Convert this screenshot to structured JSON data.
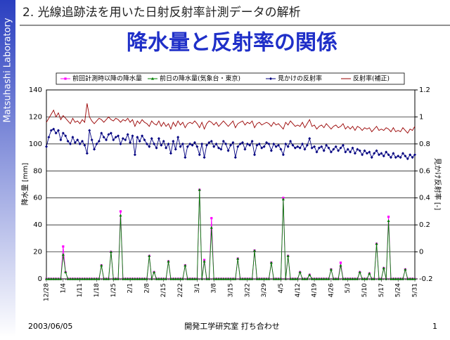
{
  "slide": {
    "sidebar": "Matsuhashi Laboratory",
    "heading": "2. 光線追跡法を用いた日射反射率計測データの解析",
    "title": "降水量と反射率の関係",
    "footer_date": "2003/06/05",
    "footer_center": "開発工学研究室 打ち合わせ",
    "page": "1"
  },
  "chart_data": {
    "type": "line",
    "ylabel": "降水量 [mm]",
    "y2label": "見かけ反射率 [-]",
    "ylim": [
      0,
      140
    ],
    "yticks": [
      0,
      20,
      40,
      60,
      80,
      100,
      120,
      140
    ],
    "y2lim": [
      -0.2,
      1.2
    ],
    "y2ticks": [
      -0.2,
      0,
      0.2,
      0.4,
      0.6,
      0.8,
      1,
      1.2
    ],
    "grid": true,
    "legend": "top",
    "categories": [
      "12/28",
      null,
      null,
      null,
      null,
      null,
      null,
      "1/4",
      null,
      null,
      null,
      null,
      null,
      null,
      "1/11",
      null,
      null,
      null,
      null,
      null,
      null,
      "1/18",
      null,
      null,
      null,
      null,
      null,
      null,
      "1/25",
      null,
      null,
      null,
      null,
      null,
      null,
      "2/1",
      null,
      null,
      null,
      null,
      null,
      null,
      "2/8",
      null,
      null,
      null,
      null,
      null,
      null,
      "2/15",
      null,
      null,
      null,
      null,
      null,
      null,
      "2/22",
      null,
      null,
      null,
      null,
      null,
      null,
      "3/1",
      null,
      null,
      null,
      null,
      null,
      null,
      "3/8",
      null,
      null,
      null,
      null,
      null,
      null,
      "3/15",
      null,
      null,
      null,
      null,
      null,
      null,
      "3/22",
      null,
      null,
      null,
      null,
      null,
      null,
      "3/29",
      null,
      null,
      null,
      null,
      null,
      null,
      "4/5",
      null,
      null,
      null,
      null,
      null,
      null,
      "4/12",
      null,
      null,
      null,
      null,
      null,
      null,
      "4/19",
      null,
      null,
      null,
      null,
      null,
      null,
      "4/26",
      null,
      null,
      null,
      null,
      null,
      null,
      "5/3",
      null,
      null,
      null,
      null,
      null,
      null,
      "5/10",
      null,
      null,
      null,
      null,
      null,
      null,
      "5/17",
      null,
      null,
      null,
      null,
      null,
      null,
      "5/24",
      null,
      null,
      null,
      null,
      null,
      null,
      "5/31"
    ],
    "series": [
      {
        "name": "前回計測時以降の降水量",
        "color": "#ff00ff",
        "marker": "square",
        "values": [
          0,
          0,
          0,
          0,
          0,
          0,
          0,
          24,
          5,
          0,
          0,
          0,
          0,
          0,
          0,
          0,
          0,
          0,
          0,
          0,
          0,
          0,
          0,
          10,
          0,
          0,
          0,
          20,
          0,
          0,
          0,
          50,
          0,
          0,
          0,
          0,
          0,
          0,
          0,
          0,
          0,
          0,
          0,
          17,
          0,
          5,
          0,
          0,
          0,
          0,
          0,
          13,
          0,
          0,
          0,
          0,
          0,
          0,
          10,
          0,
          0,
          0,
          0,
          0,
          66,
          0,
          14,
          0,
          0,
          45,
          0,
          0,
          0,
          0,
          0,
          0,
          0,
          0,
          0,
          0,
          15,
          0,
          0,
          0,
          0,
          0,
          0,
          21,
          0,
          0,
          0,
          0,
          0,
          0,
          12,
          0,
          0,
          0,
          0,
          60,
          0,
          17,
          0,
          0,
          0,
          0,
          5,
          0,
          0,
          0,
          3,
          0,
          0,
          0,
          0,
          0,
          0,
          0,
          0,
          7,
          0,
          0,
          0,
          12,
          0,
          0,
          0,
          0,
          0,
          0,
          0,
          5,
          0,
          0,
          0,
          4,
          0,
          0,
          26,
          0,
          0,
          8,
          0,
          46,
          0,
          0,
          0,
          0,
          0,
          0,
          7,
          0,
          0,
          0,
          0
        ]
      },
      {
        "name": "前日の降水量(気象台・東京)",
        "color": "#008000",
        "marker": "triangle",
        "values": [
          0,
          0,
          0,
          0,
          0,
          0,
          0,
          18,
          5,
          0,
          0,
          0,
          0,
          0,
          0,
          0,
          0,
          0,
          0,
          0,
          0,
          0,
          0,
          10,
          0,
          0,
          0,
          20,
          0,
          0,
          0,
          47,
          0,
          0,
          0,
          0,
          0,
          0,
          0,
          0,
          0,
          0,
          0,
          17,
          0,
          5,
          0,
          0,
          0,
          0,
          0,
          13,
          0,
          0,
          0,
          0,
          0,
          0,
          10,
          0,
          0,
          0,
          0,
          0,
          66,
          0,
          13,
          0,
          0,
          38,
          0,
          0,
          0,
          0,
          0,
          0,
          0,
          0,
          0,
          0,
          15,
          0,
          0,
          0,
          0,
          0,
          0,
          21,
          0,
          0,
          0,
          0,
          0,
          0,
          12,
          0,
          0,
          0,
          0,
          59,
          0,
          17,
          0,
          0,
          0,
          0,
          5,
          0,
          0,
          0,
          3,
          0,
          0,
          0,
          0,
          0,
          0,
          0,
          0,
          7,
          0,
          0,
          0,
          10,
          0,
          0,
          0,
          0,
          0,
          0,
          0,
          5,
          0,
          0,
          0,
          4,
          0,
          0,
          26,
          0,
          0,
          8,
          0,
          43,
          0,
          0,
          0,
          0,
          0,
          0,
          7,
          0,
          0,
          0,
          0
        ]
      },
      {
        "name": "見かけの反射率",
        "color": "#000080",
        "marker": "diamond",
        "axis": "y2",
        "values": [
          0.78,
          0.85,
          0.9,
          0.91,
          0.88,
          0.9,
          0.83,
          0.88,
          0.86,
          0.82,
          0.8,
          0.85,
          0.81,
          0.83,
          0.8,
          0.82,
          0.79,
          0.73,
          0.9,
          0.83,
          0.76,
          0.8,
          0.82,
          0.88,
          0.85,
          0.83,
          0.87,
          0.88,
          0.83,
          0.85,
          0.86,
          0.8,
          0.84,
          0.83,
          0.87,
          0.81,
          0.86,
          0.72,
          0.85,
          0.82,
          0.86,
          0.83,
          0.8,
          0.78,
          0.84,
          0.8,
          0.77,
          0.84,
          0.79,
          0.82,
          0.77,
          0.8,
          0.73,
          0.82,
          0.76,
          0.85,
          0.78,
          0.8,
          0.7,
          0.78,
          0.8,
          0.79,
          0.81,
          0.78,
          0.72,
          0.8,
          0.7,
          0.79,
          0.81,
          0.82,
          0.78,
          0.8,
          0.77,
          0.76,
          0.82,
          0.8,
          0.75,
          0.79,
          0.81,
          0.7,
          0.78,
          0.8,
          0.81,
          0.76,
          0.8,
          0.79,
          0.82,
          0.72,
          0.79,
          0.8,
          0.77,
          0.78,
          0.81,
          0.8,
          0.75,
          0.8,
          0.78,
          0.79,
          0.76,
          0.72,
          0.8,
          0.78,
          0.82,
          0.79,
          0.77,
          0.78,
          0.77,
          0.8,
          0.76,
          0.79,
          0.84,
          0.77,
          0.78,
          0.74,
          0.77,
          0.78,
          0.75,
          0.79,
          0.77,
          0.74,
          0.76,
          0.78,
          0.75,
          0.77,
          0.79,
          0.74,
          0.76,
          0.74,
          0.77,
          0.73,
          0.76,
          0.75,
          0.72,
          0.75,
          0.73,
          0.74,
          0.7,
          0.73,
          0.75,
          0.72,
          0.73,
          0.71,
          0.74,
          0.72,
          0.7,
          0.73,
          0.7,
          0.71,
          0.7,
          0.73,
          0.71,
          0.69,
          0.72,
          0.7,
          0.72
        ]
      },
      {
        "name": "反射率(補正)",
        "color": "#990000",
        "axis": "y2",
        "values": [
          0.96,
          0.99,
          1.02,
          1.05,
          1.0,
          1.03,
          0.98,
          1.01,
          0.99,
          0.97,
          0.95,
          0.99,
          0.96,
          0.97,
          0.95,
          0.98,
          0.96,
          1.1,
          1.0,
          0.97,
          0.95,
          0.97,
          0.99,
          0.98,
          0.96,
          0.98,
          1.0,
          0.98,
          0.97,
          0.99,
          0.98,
          0.96,
          0.98,
          0.97,
          0.99,
          0.96,
          0.98,
          0.93,
          0.97,
          0.95,
          0.98,
          0.96,
          0.95,
          0.93,
          0.97,
          0.95,
          0.94,
          0.97,
          0.93,
          0.96,
          0.93,
          0.95,
          0.91,
          0.96,
          0.93,
          0.97,
          0.94,
          0.96,
          0.92,
          0.95,
          0.96,
          0.95,
          0.97,
          0.95,
          0.92,
          0.96,
          0.91,
          0.95,
          0.97,
          0.96,
          0.94,
          0.96,
          0.93,
          0.95,
          0.97,
          0.95,
          0.93,
          0.95,
          0.97,
          0.92,
          0.95,
          0.96,
          0.97,
          0.94,
          0.96,
          0.95,
          0.97,
          0.92,
          0.95,
          0.96,
          0.94,
          0.95,
          0.96,
          0.95,
          0.93,
          0.96,
          0.94,
          0.95,
          0.93,
          0.91,
          0.96,
          0.94,
          0.97,
          0.95,
          0.93,
          0.94,
          0.93,
          0.96,
          0.92,
          0.95,
          0.98,
          0.93,
          0.94,
          0.91,
          0.93,
          0.94,
          0.92,
          0.95,
          0.93,
          0.91,
          0.93,
          0.94,
          0.92,
          0.93,
          0.95,
          0.91,
          0.93,
          0.91,
          0.93,
          0.9,
          0.93,
          0.92,
          0.9,
          0.92,
          0.91,
          0.92,
          0.89,
          0.91,
          0.93,
          0.9,
          0.91,
          0.9,
          0.92,
          0.91,
          0.89,
          0.92,
          0.89,
          0.9,
          0.89,
          0.92,
          0.9,
          0.88,
          0.91,
          0.9,
          0.93
        ]
      }
    ]
  }
}
